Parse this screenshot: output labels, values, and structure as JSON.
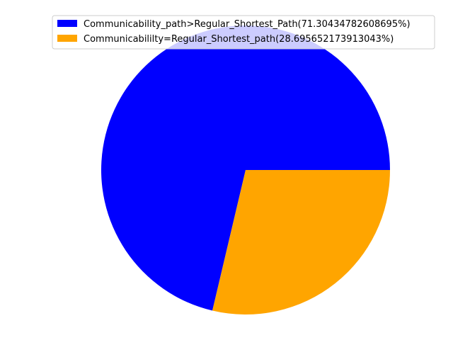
{
  "chart_data": {
    "type": "pie",
    "title": "",
    "slices": [
      {
        "label": "Communicability_path>Regular_Shortest_Path(71.30434782608695%)",
        "value": 71.30434782608695,
        "color": "#0000ff"
      },
      {
        "label": "Communicabililty=Regular_Shortest_path(28.695652173913043%)",
        "value": 28.695652173913043,
        "color": "#ffa500"
      }
    ],
    "start_angle_deg": 0,
    "direction": "counterclockwise",
    "legend_position": "top-right"
  }
}
